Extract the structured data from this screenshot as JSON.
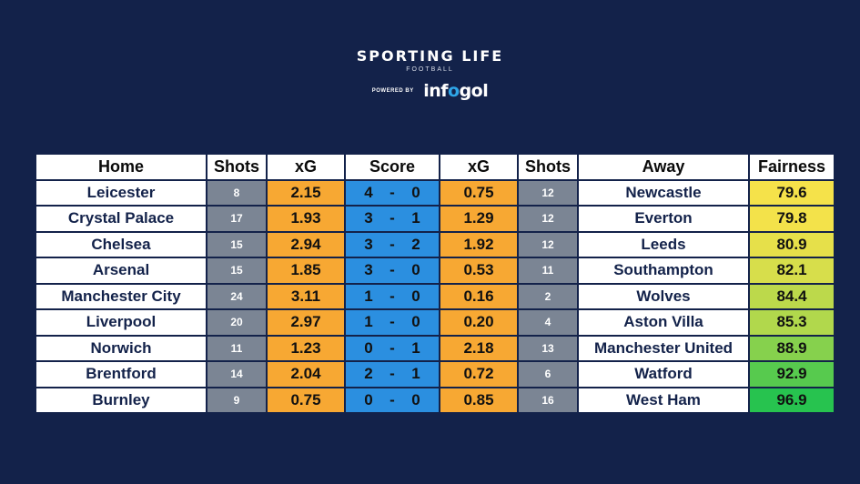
{
  "brand": {
    "title": "SPORTING LIFE",
    "subtitle": "FOOTBALL",
    "powered_by": "POWERED BY",
    "partner_prefix": "inf",
    "partner_o": "o",
    "partner_suffix": "gol"
  },
  "colors": {
    "background": "#13224a",
    "shots": "#7b8594",
    "xg": "#f7a833",
    "score": "#2b8fe0",
    "fairness_low": "#f5e24a",
    "fairness_high": "#27c34f"
  },
  "chart_data": {
    "type": "table",
    "columns": [
      "Home",
      "Shots",
      "xG",
      "Score",
      "xG",
      "Shots",
      "Away",
      "Fairness"
    ],
    "rows": [
      {
        "home": "Leicester",
        "home_shots": "8",
        "home_xg": "2.15",
        "home_goals": "4",
        "sep": "-",
        "away_goals": "0",
        "away_xg": "0.75",
        "away_shots": "12",
        "away": "Newcastle",
        "fairness": "79.6"
      },
      {
        "home": "Crystal Palace",
        "home_shots": "17",
        "home_xg": "1.93",
        "home_goals": "3",
        "sep": "-",
        "away_goals": "1",
        "away_xg": "1.29",
        "away_shots": "12",
        "away": "Everton",
        "fairness": "79.8"
      },
      {
        "home": "Chelsea",
        "home_shots": "15",
        "home_xg": "2.94",
        "home_goals": "3",
        "sep": "-",
        "away_goals": "2",
        "away_xg": "1.92",
        "away_shots": "12",
        "away": "Leeds",
        "fairness": "80.9"
      },
      {
        "home": "Arsenal",
        "home_shots": "15",
        "home_xg": "1.85",
        "home_goals": "3",
        "sep": "-",
        "away_goals": "0",
        "away_xg": "0.53",
        "away_shots": "11",
        "away": "Southampton",
        "fairness": "82.1"
      },
      {
        "home": "Manchester City",
        "home_shots": "24",
        "home_xg": "3.11",
        "home_goals": "1",
        "sep": "-",
        "away_goals": "0",
        "away_xg": "0.16",
        "away_shots": "2",
        "away": "Wolves",
        "fairness": "84.4"
      },
      {
        "home": "Liverpool",
        "home_shots": "20",
        "home_xg": "2.97",
        "home_goals": "1",
        "sep": "-",
        "away_goals": "0",
        "away_xg": "0.20",
        "away_shots": "4",
        "away": "Aston Villa",
        "fairness": "85.3"
      },
      {
        "home": "Norwich",
        "home_shots": "11",
        "home_xg": "1.23",
        "home_goals": "0",
        "sep": "-",
        "away_goals": "1",
        "away_xg": "2.18",
        "away_shots": "13",
        "away": "Manchester United",
        "fairness": "88.9"
      },
      {
        "home": "Brentford",
        "home_shots": "14",
        "home_xg": "2.04",
        "home_goals": "2",
        "sep": "-",
        "away_goals": "1",
        "away_xg": "0.72",
        "away_shots": "6",
        "away": "Watford",
        "fairness": "92.9"
      },
      {
        "home": "Burnley",
        "home_shots": "9",
        "home_xg": "0.75",
        "home_goals": "0",
        "sep": "-",
        "away_goals": "0",
        "away_xg": "0.85",
        "away_shots": "16",
        "away": "West Ham",
        "fairness": "96.9"
      }
    ]
  }
}
